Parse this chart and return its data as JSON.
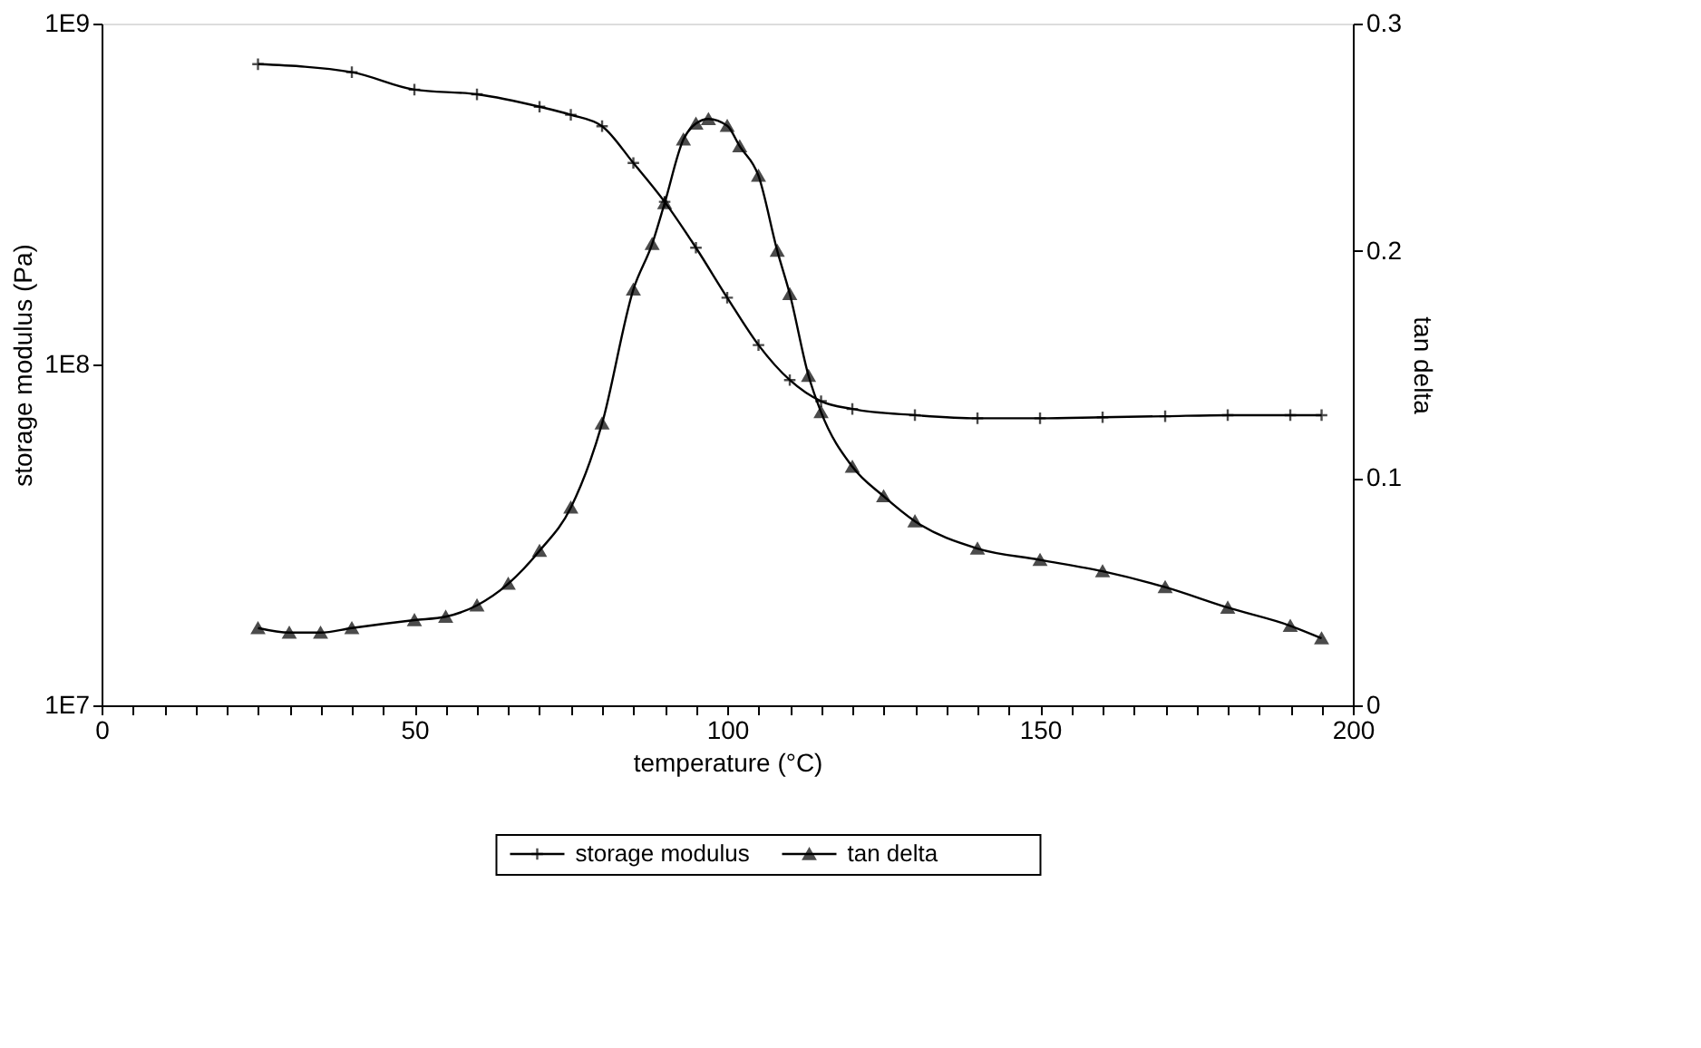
{
  "chart_data": {
    "type": "line",
    "xlabel": "temperature (°C)",
    "ylabel": "storage modulus (Pa)",
    "y2label": "tan delta",
    "xlim": [
      0,
      200
    ],
    "xticks": [
      0,
      {
        "value": 5,
        "label": null
      },
      {
        "value": 10,
        "label": null
      },
      {
        "value": 15,
        "label": null
      },
      {
        "value": 20,
        "label": null
      },
      {
        "value": 25,
        "label": null
      },
      {
        "value": 30,
        "label": null
      },
      {
        "value": 35,
        "label": null
      },
      {
        "value": 40,
        "label": null
      },
      {
        "value": 45,
        "label": null
      },
      50,
      {
        "value": 55,
        "label": null
      },
      {
        "value": 60,
        "label": null
      },
      {
        "value": 65,
        "label": null
      },
      {
        "value": 70,
        "label": null
      },
      {
        "value": 75,
        "label": null
      },
      {
        "value": 80,
        "label": null
      },
      {
        "value": 85,
        "label": null
      },
      {
        "value": 90,
        "label": null
      },
      {
        "value": 95,
        "label": null
      },
      100,
      {
        "value": 105,
        "label": null
      },
      {
        "value": 110,
        "label": null
      },
      {
        "value": 115,
        "label": null
      },
      {
        "value": 120,
        "label": null
      },
      {
        "value": 125,
        "label": null
      },
      {
        "value": 130,
        "label": null
      },
      {
        "value": 135,
        "label": null
      },
      {
        "value": 140,
        "label": null
      },
      {
        "value": 145,
        "label": null
      },
      150,
      {
        "value": 155,
        "label": null
      },
      {
        "value": 160,
        "label": null
      },
      {
        "value": 165,
        "label": null
      },
      {
        "value": 170,
        "label": null
      },
      {
        "value": 175,
        "label": null
      },
      {
        "value": 180,
        "label": null
      },
      {
        "value": 185,
        "label": null
      },
      {
        "value": 190,
        "label": null
      },
      {
        "value": 195,
        "label": null
      },
      200
    ],
    "ylim": [
      10000000,
      1000000000
    ],
    "yticks": [
      {
        "value": 10000000,
        "label": "1E7"
      },
      {
        "value": 100000000,
        "label": "1E8"
      },
      {
        "value": 1000000000,
        "label": "1E9"
      }
    ],
    "log": "y",
    "y2lim": [
      0,
      0.3
    ],
    "y2ticks": [
      0,
      0.1,
      0.2,
      0.3
    ],
    "grid": false,
    "legend": "bottom",
    "line_style": "solid",
    "series": [
      {
        "name": "storage modulus",
        "color": "#000000",
        "marker": "cross",
        "x": [
          25,
          40,
          50,
          60,
          70,
          75,
          80,
          85,
          90,
          95,
          100,
          105,
          110,
          115,
          120,
          130,
          140,
          150,
          160,
          170,
          180,
          190,
          195
        ],
        "values": [
          760000000,
          720000000,
          640000000,
          620000000,
          570000000,
          540000000,
          500000000,
          390000000,
          300000000,
          220000000,
          157000000,
          114000000,
          90000000,
          78000000,
          74000000,
          71000000,
          69500000,
          69500000,
          70000000,
          70500000,
          71000000,
          71000000,
          71000000
        ]
      },
      {
        "name": "tan delta",
        "color": "#000000",
        "marker": "triangle",
        "axis": "y2",
        "x": [
          25,
          30,
          35,
          40,
          50,
          55,
          60,
          65,
          70,
          75,
          80,
          85,
          88,
          90,
          93,
          95,
          97,
          100,
          102,
          105,
          108,
          110,
          113,
          115,
          120,
          125,
          130,
          140,
          150,
          160,
          170,
          180,
          190,
          195
        ],
        "values": [
          0.034,
          0.032,
          0.032,
          0.034,
          0.0375,
          0.039,
          0.044,
          0.0535,
          0.068,
          0.087,
          0.124,
          0.183,
          0.203,
          0.221,
          0.249,
          0.256,
          0.258,
          0.255,
          0.246,
          0.233,
          0.2,
          0.181,
          0.145,
          0.129,
          0.105,
          0.092,
          0.081,
          0.069,
          0.064,
          0.059,
          0.052,
          0.043,
          0.035,
          0.0295
        ]
      }
    ]
  }
}
